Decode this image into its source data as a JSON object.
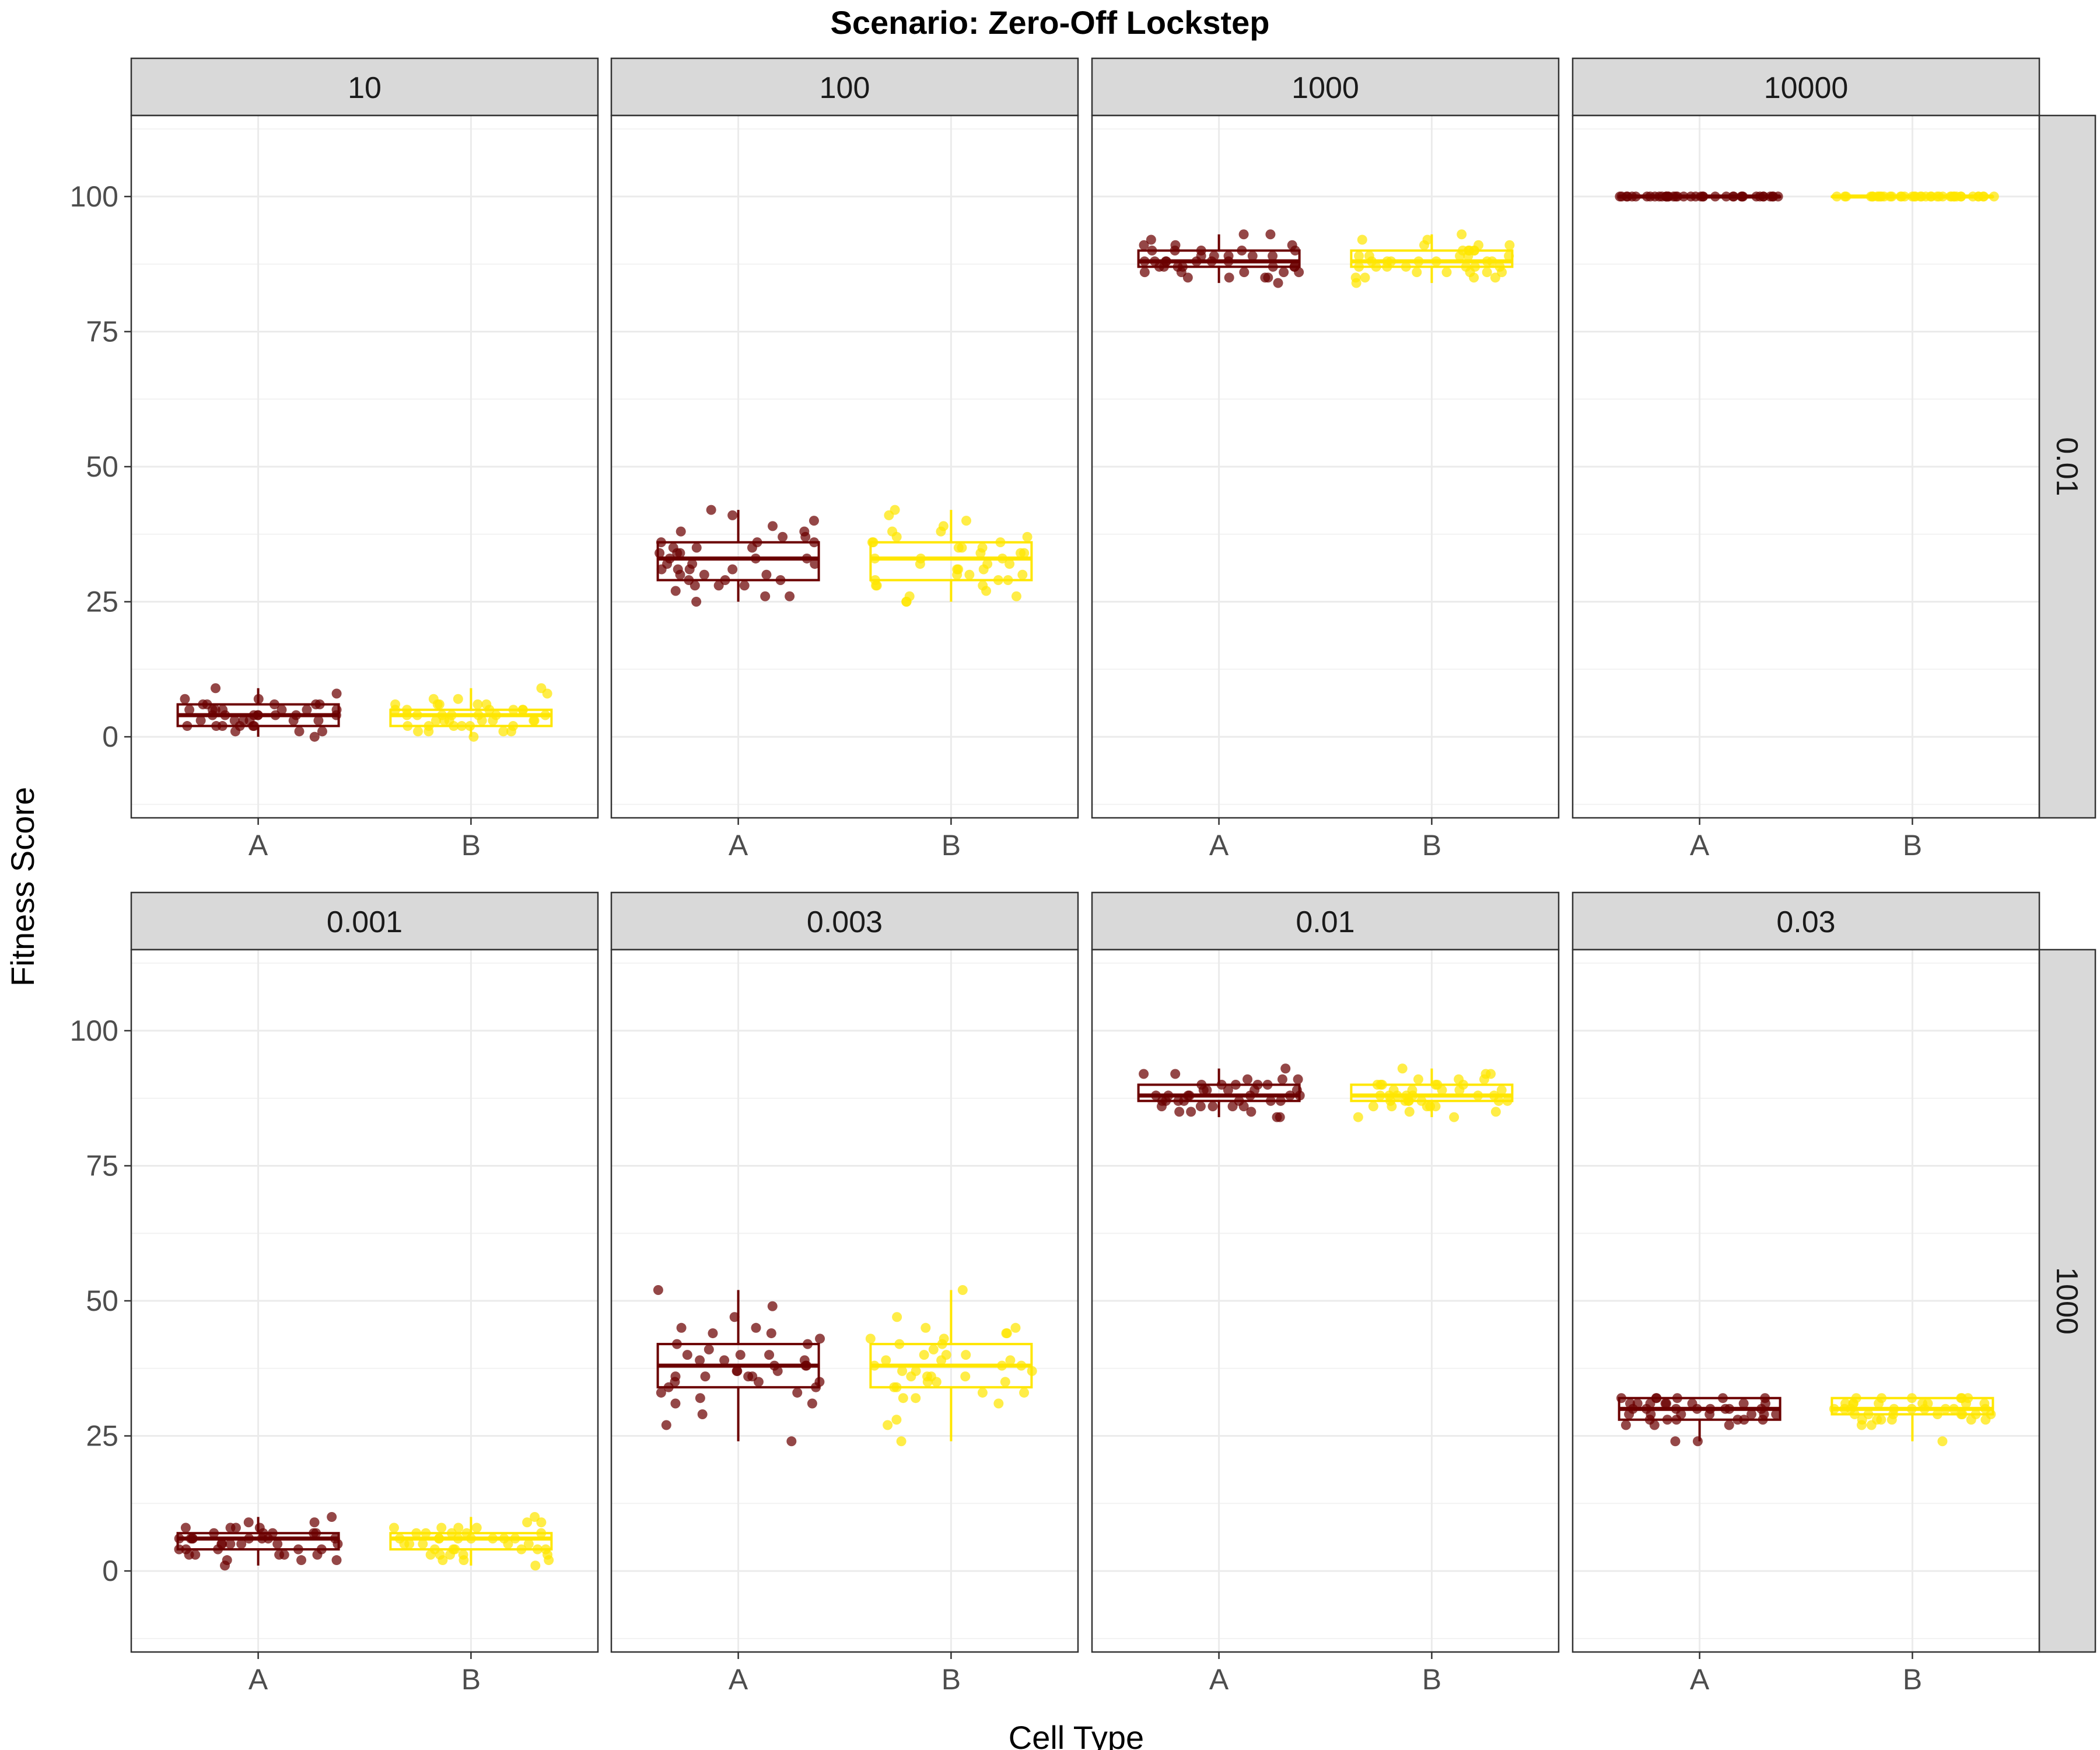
{
  "chart_data": {
    "type": "box",
    "title": "Scenario: Zero-Off Lockstep",
    "xlabel": "Cell Type",
    "ylabel": "Fitness Score",
    "categories": [
      "A",
      "B"
    ],
    "y_ticks": [
      0,
      25,
      50,
      75,
      100
    ],
    "ylim": [
      -15,
      115
    ],
    "grid": true,
    "colors": {
      "A": "#6b0000",
      "B": "#ffe600"
    },
    "rows": [
      {
        "strip": "0.01",
        "panels": [
          {
            "strip": "10",
            "A": {
              "min": 0,
              "q1": 2,
              "median": 4,
              "q3": 6,
              "max": 9,
              "points": [
                5,
                4,
                2,
                6,
                3,
                1,
                4,
                5,
                7,
                3,
                2,
                6,
                4,
                5,
                3,
                0,
                4,
                2,
                6,
                5,
                8,
                3,
                1,
                4,
                6,
                2,
                5,
                3,
                7,
                4,
                2,
                5,
                6,
                3,
                4,
                9,
                1,
                5,
                2,
                4
              ]
            },
            "B": {
              "min": 0,
              "q1": 2,
              "median": 4,
              "q3": 5,
              "max": 9,
              "points": [
                1,
                3,
                5,
                2,
                4,
                6,
                0,
                3,
                5,
                7,
                2,
                4,
                3,
                6,
                1,
                5,
                4,
                2,
                8,
                3,
                5,
                6,
                2,
                4,
                7,
                3,
                1,
                5,
                4,
                6,
                2,
                3,
                9,
                4,
                5,
                1,
                3,
                6,
                2,
                4
              ]
            }
          },
          {
            "strip": "100",
            "A": {
              "min": 25,
              "q1": 29,
              "median": 33,
              "q3": 36,
              "max": 42,
              "points": [
                25,
                37,
                30,
                42,
                28,
                33,
                35,
                31,
                26,
                36,
                40,
                32,
                29,
                34,
                27,
                38,
                31,
                35,
                29,
                33,
                36,
                30,
                41,
                28,
                34,
                32,
                37,
                29,
                31,
                35,
                33,
                26,
                39,
                30,
                34,
                28,
                36,
                32,
                38,
                31
              ]
            },
            "B": {
              "min": 25,
              "q1": 29,
              "median": 33,
              "q3": 36,
              "max": 42,
              "points": [
                26,
                35,
                30,
                40,
                28,
                33,
                41,
                31,
                25,
                36,
                38,
                32,
                29,
                34,
                27,
                37,
                31,
                35,
                29,
                33,
                36,
                30,
                42,
                28,
                34,
                32,
                37,
                29,
                31,
                35,
                33,
                26,
                39,
                30,
                34,
                28,
                36,
                32,
                38,
                25
              ]
            }
          },
          {
            "strip": "1000",
            "A": {
              "min": 84,
              "q1": 87,
              "median": 88,
              "q3": 90,
              "max": 93,
              "points": [
                87,
                90,
                86,
                93,
                88,
                85,
                89,
                91,
                87,
                88,
                84,
                90,
                86,
                89,
                92,
                87,
                88,
                85,
                90,
                87,
                91,
                86,
                88,
                89,
                93,
                87,
                85,
                90,
                88,
                86,
                89,
                87,
                91,
                88,
                85,
                90,
                87,
                86,
                89,
                88
              ]
            },
            "B": {
              "min": 84,
              "q1": 87,
              "median": 88,
              "q3": 90,
              "max": 93,
              "points": [
                88,
                90,
                86,
                92,
                87,
                85,
                89,
                91,
                88,
                87,
                84,
                90,
                86,
                89,
                93,
                87,
                88,
                85,
                90,
                87,
                91,
                86,
                88,
                89,
                92,
                87,
                85,
                90,
                88,
                86,
                89,
                87,
                91,
                88,
                85,
                90,
                87,
                86,
                89,
                88
              ]
            }
          },
          {
            "strip": "10000",
            "A": {
              "min": 100,
              "q1": 100,
              "median": 100,
              "q3": 100,
              "max": 100,
              "points": [
                100,
                100,
                100,
                100,
                100,
                100,
                100,
                100,
                100,
                100,
                100,
                100,
                100,
                100,
                100,
                100,
                100,
                100,
                100,
                100,
                100,
                100,
                100,
                100,
                100,
                100,
                100,
                100,
                100,
                100,
                100,
                100,
                100,
                100,
                100,
                100,
                100,
                100,
                100,
                100
              ]
            },
            "B": {
              "min": 100,
              "q1": 100,
              "median": 100,
              "q3": 100,
              "max": 100,
              "points": [
                100,
                100,
                100,
                100,
                100,
                100,
                100,
                100,
                100,
                100,
                100,
                100,
                100,
                100,
                100,
                100,
                100,
                100,
                100,
                100,
                100,
                100,
                100,
                100,
                100,
                100,
                100,
                100,
                100,
                100,
                100,
                100,
                100,
                100,
                100,
                100,
                100,
                100,
                100,
                100
              ]
            }
          }
        ]
      },
      {
        "strip": "1000",
        "panels": [
          {
            "strip": "0.001",
            "A": {
              "min": 1,
              "q1": 4,
              "median": 6,
              "q3": 7,
              "max": 10,
              "points": [
                5,
                7,
                3,
                6,
                8,
                4,
                2,
                6,
                5,
                9,
                3,
                7,
                4,
                6,
                1,
                8,
                5,
                3,
                7,
                6,
                4,
                10,
                2,
                6,
                5,
                8,
                3,
                7,
                4,
                6,
                5,
                9,
                3,
                7,
                6,
                4,
                2,
                6,
                5,
                8
              ]
            },
            "B": {
              "min": 1,
              "q1": 4,
              "median": 6,
              "q3": 7,
              "max": 10,
              "points": [
                4,
                7,
                3,
                6,
                8,
                5,
                2,
                6,
                4,
                9,
                3,
                7,
                5,
                6,
                1,
                8,
                4,
                3,
                7,
                6,
                5,
                10,
                2,
                6,
                4,
                8,
                3,
                7,
                5,
                6,
                4,
                9,
                3,
                7,
                6,
                5,
                2,
                6,
                4,
                8
              ]
            }
          },
          {
            "strip": "0.003",
            "A": {
              "min": 24,
              "q1": 34,
              "median": 38,
              "q3": 42,
              "max": 52,
              "points": [
                29,
                49,
                36,
                42,
                33,
                45,
                38,
                35,
                52,
                40,
                34,
                37,
                31,
                44,
                39,
                36,
                41,
                27,
                38,
                35,
                43,
                32,
                47,
                37,
                40,
                34,
                39,
                24,
                36,
                42,
                38,
                33,
                45,
                35,
                40,
                37,
                31,
                44,
                36,
                39
              ]
            },
            "B": {
              "min": 24,
              "q1": 34,
              "median": 38,
              "q3": 42,
              "max": 52,
              "points": [
                32,
                45,
                36,
                42,
                33,
                44,
                38,
                35,
                52,
                40,
                34,
                37,
                31,
                43,
                39,
                36,
                41,
                28,
                38,
                35,
                44,
                32,
                47,
                37,
                40,
                34,
                39,
                24,
                36,
                42,
                38,
                33,
                45,
                35,
                40,
                37,
                27,
                43,
                36,
                39
              ]
            }
          },
          {
            "strip": "0.01",
            "A": {
              "min": 84,
              "q1": 87,
              "median": 88,
              "q3": 90,
              "max": 93,
              "points": [
                87,
                91,
                86,
                89,
                88,
                85,
                90,
                93,
                87,
                88,
                84,
                90,
                86,
                89,
                92,
                87,
                88,
                85,
                90,
                87,
                91,
                86,
                88,
                89,
                92,
                87,
                85,
                90,
                88,
                86,
                89,
                87,
                91,
                88,
                84,
                90,
                87,
                86,
                89,
                88
              ]
            },
            "B": {
              "min": 84,
              "q1": 87,
              "median": 88,
              "q3": 90,
              "max": 93,
              "points": [
                88,
                90,
                86,
                91,
                87,
                89,
                90,
                93,
                88,
                87,
                84,
                90,
                86,
                89,
                92,
                87,
                88,
                85,
                90,
                87,
                91,
                86,
                88,
                89,
                92,
                87,
                85,
                90,
                88,
                86,
                89,
                87,
                91,
                88,
                84,
                90,
                87,
                86,
                89,
                88
              ]
            }
          },
          {
            "strip": "0.03",
            "A": {
              "min": 24,
              "q1": 28,
              "median": 30,
              "q3": 32,
              "max": 32,
              "points": [
                31,
                29,
                32,
                28,
                30,
                27,
                31,
                29,
                32,
                30,
                28,
                31,
                24,
                30,
                29,
                32,
                28,
                31,
                30,
                27,
                29,
                32,
                31,
                28,
                30,
                29,
                24,
                31,
                32,
                30,
                28,
                29,
                31,
                30,
                32,
                28,
                29,
                31,
                30,
                27
              ]
            },
            "B": {
              "min": 24,
              "q1": 29,
              "median": 30,
              "q3": 32,
              "max": 32,
              "points": [
                31,
                30,
                32,
                29,
                30,
                28,
                31,
                29,
                32,
                30,
                28,
                31,
                27,
                30,
                29,
                32,
                28,
                31,
                30,
                29,
                29,
                32,
                31,
                28,
                30,
                29,
                24,
                31,
                32,
                30,
                28,
                29,
                31,
                30,
                32,
                28,
                29,
                31,
                30,
                27
              ]
            }
          }
        ]
      }
    ]
  }
}
